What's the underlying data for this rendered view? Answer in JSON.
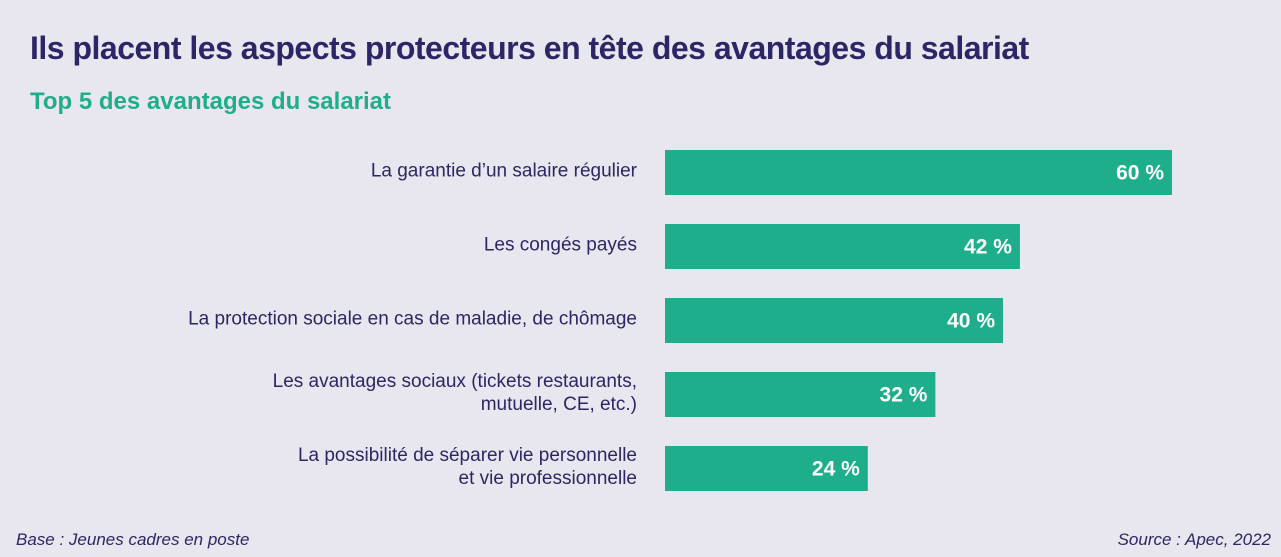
{
  "header": {
    "title": "Ils placent les aspects protecteurs en tête des avantages du salariat",
    "subtitle": "Top 5 des avantages du salariat"
  },
  "footer": {
    "base": "Base : Jeunes cadres en poste",
    "source": "Source : Apec, 2022"
  },
  "colors": {
    "bar": "#1fae8c",
    "title": "#2b2766",
    "subtitle": "#1fae8c",
    "background": "#e8e6ee"
  },
  "chart_data": {
    "type": "bar",
    "orientation": "horizontal",
    "title": "Top 5 des avantages du salariat",
    "categories": [
      [
        "La garantie d’un salaire régulier"
      ],
      [
        "Les congés payés"
      ],
      [
        "La protection sociale en cas de maladie, de chômage"
      ],
      [
        "Les avantages sociaux (tickets restaurants,",
        "mutuelle, CE, etc.)"
      ],
      [
        "La possibilité de séparer vie personnelle",
        "et vie professionnelle"
      ]
    ],
    "values": [
      60,
      42,
      40,
      32,
      24
    ],
    "value_labels": [
      "60 %",
      "42 %",
      "40 %",
      "32 %",
      "24 %"
    ],
    "xlim": [
      0,
      100
    ],
    "grid": false,
    "legend": "none"
  }
}
